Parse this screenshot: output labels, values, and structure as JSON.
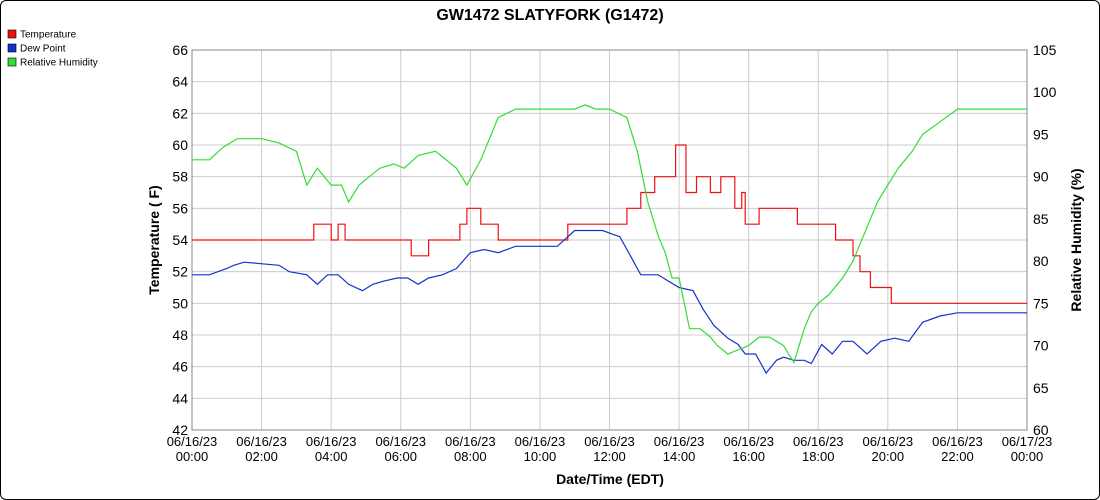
{
  "chart_data": {
    "type": "line",
    "title": "GW1472 SLATYFORK (G1472)",
    "xlabel": "Date/Time (EDT)",
    "ylabel": "Temperature ( F)",
    "y2label": "Relative Humidity (%)",
    "ylim": [
      42,
      66
    ],
    "y2lim": [
      60,
      105
    ],
    "xlim": [
      0,
      24
    ],
    "grid": true,
    "legend_position": "top-left",
    "y_ticks": [
      "42",
      "44",
      "46",
      "48",
      "50",
      "52",
      "54",
      "56",
      "58",
      "60",
      "62",
      "64",
      "66"
    ],
    "y2_ticks": [
      "60",
      "65",
      "70",
      "75",
      "80",
      "85",
      "90",
      "95",
      "100",
      "105"
    ],
    "x_ticks": [
      {
        "date": "06/16/23",
        "time": "00:00"
      },
      {
        "date": "06/16/23",
        "time": "02:00"
      },
      {
        "date": "06/16/23",
        "time": "04:00"
      },
      {
        "date": "06/16/23",
        "time": "06:00"
      },
      {
        "date": "06/16/23",
        "time": "08:00"
      },
      {
        "date": "06/16/23",
        "time": "10:00"
      },
      {
        "date": "06/16/23",
        "time": "12:00"
      },
      {
        "date": "06/16/23",
        "time": "14:00"
      },
      {
        "date": "06/16/23",
        "time": "16:00"
      },
      {
        "date": "06/16/23",
        "time": "18:00"
      },
      {
        "date": "06/16/23",
        "time": "20:00"
      },
      {
        "date": "06/16/23",
        "time": "22:00"
      },
      {
        "date": "06/17/23",
        "time": "00:00"
      }
    ],
    "series": [
      {
        "name": "Temperature",
        "axis": "left",
        "color": "#ee1111",
        "x": [
          0,
          3.5,
          3.5,
          4,
          4,
          4.2,
          4.2,
          4.4,
          4.4,
          6.3,
          6.3,
          6.8,
          6.8,
          7.7,
          7.7,
          7.9,
          7.9,
          8.3,
          8.3,
          8.8,
          8.8,
          10.8,
          10.8,
          12.5,
          12.5,
          12.9,
          12.9,
          13.3,
          13.3,
          13.9,
          13.9,
          14.2,
          14.2,
          14.5,
          14.5,
          14.9,
          14.9,
          15.2,
          15.2,
          15.6,
          15.6,
          15.8,
          15.8,
          15.9,
          15.9,
          16.3,
          16.3,
          16.7,
          16.7,
          17.4,
          17.4,
          18.5,
          18.5,
          19,
          19,
          19.2,
          19.2,
          19.5,
          19.5,
          20.1,
          20.1,
          24
        ],
        "y": [
          54,
          54,
          55,
          55,
          54,
          54,
          55,
          55,
          54,
          54,
          53,
          53,
          54,
          54,
          55,
          55,
          56,
          56,
          55,
          55,
          54,
          54,
          55,
          55,
          56,
          56,
          57,
          57,
          58,
          58,
          60,
          60,
          57,
          57,
          58,
          58,
          57,
          57,
          58,
          58,
          56,
          56,
          57,
          57,
          55,
          55,
          56,
          56,
          56,
          56,
          55,
          55,
          54,
          54,
          53,
          53,
          52,
          52,
          51,
          51,
          50,
          50
        ]
      },
      {
        "name": "Dew Point",
        "axis": "left",
        "color": "#1133cc",
        "x": [
          0,
          0.5,
          1,
          1.2,
          1.5,
          2.5,
          2.8,
          3.3,
          3.6,
          3.9,
          4.2,
          4.5,
          4.9,
          5.2,
          5.5,
          5.9,
          6.2,
          6.5,
          6.8,
          7.2,
          7.6,
          8.0,
          8.4,
          8.8,
          9.3,
          9.8,
          10.5,
          11.0,
          11.4,
          11.8,
          12.3,
          12.6,
          12.9,
          13.1,
          13.4,
          13.7,
          14.0,
          14.4,
          14.7,
          15.0,
          15.4,
          15.7,
          15.9,
          16.2,
          16.5,
          16.8,
          17.0,
          17.3,
          17.6,
          17.8,
          18.1,
          18.4,
          18.7,
          19.0,
          19.4,
          19.8,
          20.2,
          20.6,
          21.0,
          21.5,
          22.0,
          24
        ],
        "y": [
          51.8,
          51.8,
          52.2,
          52.4,
          52.6,
          52.4,
          52.0,
          51.8,
          51.2,
          51.8,
          51.8,
          51.2,
          50.8,
          51.2,
          51.4,
          51.6,
          51.6,
          51.2,
          51.6,
          51.8,
          52.2,
          53.2,
          53.4,
          53.2,
          53.6,
          53.6,
          53.6,
          54.6,
          54.6,
          54.6,
          54.2,
          53.0,
          51.8,
          51.8,
          51.8,
          51.4,
          51.0,
          50.8,
          49.6,
          48.6,
          47.8,
          47.4,
          46.8,
          46.8,
          45.6,
          46.4,
          46.6,
          46.4,
          46.4,
          46.2,
          47.4,
          46.8,
          47.6,
          47.6,
          46.8,
          47.6,
          47.8,
          47.6,
          48.8,
          49.2,
          49.4,
          49.4
        ]
      },
      {
        "name": "Relative Humidity",
        "axis": "right",
        "color": "#33dd33",
        "x": [
          0,
          0.5,
          0.9,
          1.3,
          2.0,
          2.5,
          3.0,
          3.3,
          3.6,
          4.0,
          4.3,
          4.5,
          4.8,
          5.1,
          5.4,
          5.8,
          6.1,
          6.5,
          7.0,
          7.6,
          7.9,
          8.3,
          8.8,
          9.3,
          10.0,
          10.5,
          11.0,
          11.3,
          11.6,
          12.0,
          12.5,
          12.8,
          13.1,
          13.4,
          13.6,
          13.8,
          14.0,
          14.3,
          14.6,
          14.9,
          15.1,
          15.4,
          15.7,
          16.0,
          16.3,
          16.6,
          17.0,
          17.3,
          17.6,
          17.8,
          18.0,
          18.3,
          18.7,
          19.0,
          19.3,
          19.7,
          20.0,
          20.3,
          20.7,
          21.0,
          21.5,
          22.0,
          22.8,
          24
        ],
        "y": [
          92,
          92,
          93.5,
          94.5,
          94.5,
          94,
          93,
          89,
          91,
          89,
          89,
          87,
          89,
          90,
          91,
          91.5,
          91,
          92.5,
          93,
          91,
          89,
          92,
          97,
          98,
          98,
          98,
          98,
          98.5,
          98,
          98,
          97,
          93,
          87,
          83,
          81,
          78,
          78,
          72,
          72,
          71,
          70,
          69,
          69.5,
          70,
          71,
          71,
          70,
          68,
          72,
          74,
          75,
          76,
          78,
          80,
          83,
          87,
          89,
          91,
          93,
          95,
          96.5,
          98,
          98,
          98
        ]
      }
    ]
  }
}
